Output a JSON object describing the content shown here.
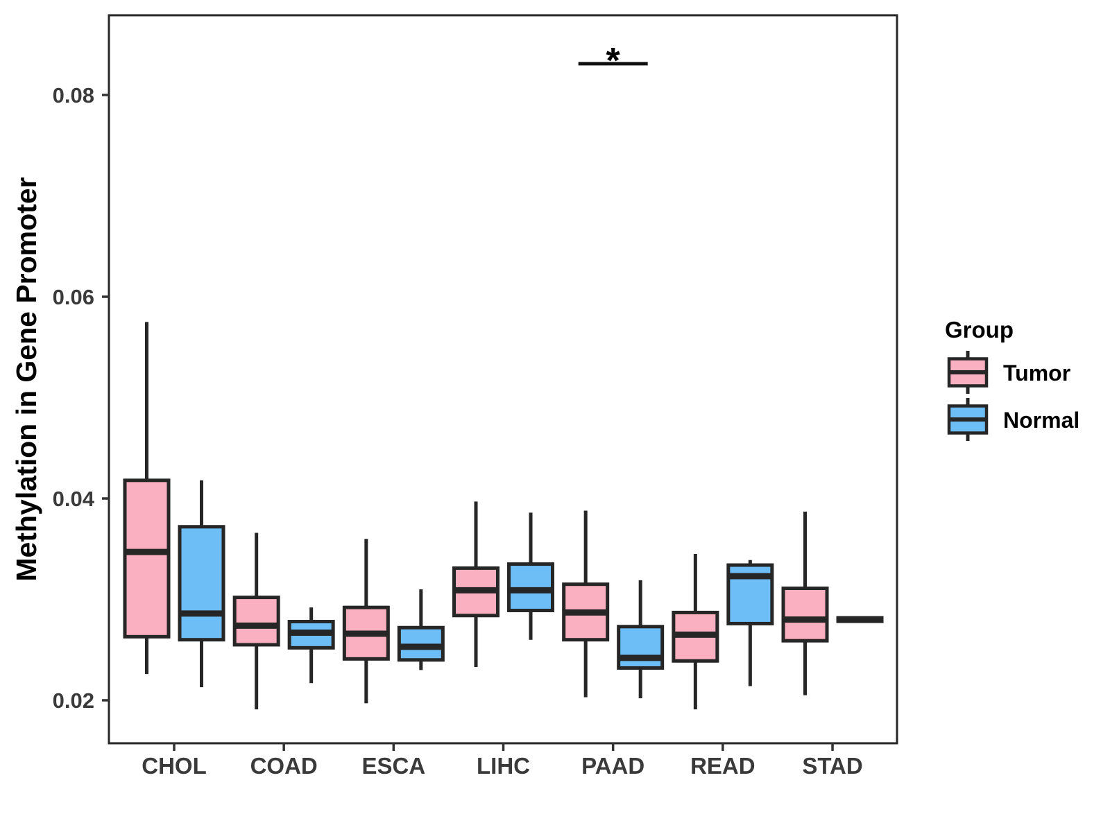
{
  "figure": {
    "y_axis_title": "Methylation in Gene Promoter"
  },
  "chart_data": {
    "type": "grouped_boxplot",
    "title": "",
    "xlabel": "",
    "ylabel": "Methylation in Gene Promoter",
    "categories": [
      "CHOL",
      "COAD",
      "ESCA",
      "LIHC",
      "PAAD",
      "READ",
      "STAD"
    ],
    "y_ticks": [
      0.02,
      0.04,
      0.06,
      0.08
    ],
    "y_tick_labels": [
      "0.02",
      "0.04",
      "0.06",
      "0.08"
    ],
    "ylim": [
      0.0157,
      0.0879
    ],
    "grid": "off",
    "panel_border_color": "#262626",
    "box_stroke_color": "#262626",
    "legend": {
      "title": "Group",
      "position": "right",
      "entries": [
        {
          "label": "Tumor",
          "color": "#FAB0C0"
        },
        {
          "label": "Normal",
          "color": "#6DBEF6"
        }
      ]
    },
    "series": [
      {
        "name": "Tumor",
        "color": "#FAB0C0",
        "boxes": [
          {
            "category": "CHOL",
            "whisker_low": 0.0226,
            "q1": 0.0263,
            "median": 0.0347,
            "q3": 0.0418,
            "whisker_high": 0.0575
          },
          {
            "category": "COAD",
            "whisker_low": 0.0191,
            "q1": 0.0255,
            "median": 0.0274,
            "q3": 0.0302,
            "whisker_high": 0.0366
          },
          {
            "category": "ESCA",
            "whisker_low": 0.0197,
            "q1": 0.0241,
            "median": 0.0266,
            "q3": 0.0292,
            "whisker_high": 0.036
          },
          {
            "category": "LIHC",
            "whisker_low": 0.0233,
            "q1": 0.0284,
            "median": 0.0309,
            "q3": 0.0331,
            "whisker_high": 0.0397
          },
          {
            "category": "PAAD",
            "whisker_low": 0.0203,
            "q1": 0.026,
            "median": 0.0287,
            "q3": 0.0315,
            "whisker_high": 0.0388
          },
          {
            "category": "READ",
            "whisker_low": 0.0191,
            "q1": 0.0239,
            "median": 0.0265,
            "q3": 0.0287,
            "whisker_high": 0.0345
          },
          {
            "category": "STAD",
            "whisker_low": 0.0205,
            "q1": 0.0259,
            "median": 0.028,
            "q3": 0.0311,
            "whisker_high": 0.0387
          }
        ]
      },
      {
        "name": "Normal",
        "color": "#6DBEF6",
        "boxes": [
          {
            "category": "CHOL",
            "whisker_low": 0.0213,
            "q1": 0.026,
            "median": 0.0286,
            "q3": 0.0372,
            "whisker_high": 0.0418
          },
          {
            "category": "COAD",
            "whisker_low": 0.0217,
            "q1": 0.0252,
            "median": 0.0267,
            "q3": 0.0278,
            "whisker_high": 0.0292
          },
          {
            "category": "ESCA",
            "whisker_low": 0.023,
            "q1": 0.024,
            "median": 0.0253,
            "q3": 0.0272,
            "whisker_high": 0.031
          },
          {
            "category": "LIHC",
            "whisker_low": 0.026,
            "q1": 0.0289,
            "median": 0.0309,
            "q3": 0.0335,
            "whisker_high": 0.0386
          },
          {
            "category": "PAAD",
            "whisker_low": 0.0202,
            "q1": 0.0232,
            "median": 0.0242,
            "q3": 0.0273,
            "whisker_high": 0.0319
          },
          {
            "category": "READ",
            "whisker_low": 0.0214,
            "q1": 0.0276,
            "median": 0.0323,
            "q3": 0.0334,
            "whisker_high": 0.0339
          },
          {
            "category": "STAD",
            "whisker_low": 0.028,
            "q1": 0.028,
            "median": 0.028,
            "q3": 0.028,
            "whisker_high": 0.028
          }
        ]
      }
    ],
    "annotation": {
      "text": "*",
      "category": "PAAD",
      "bar_y_value": 0.0831,
      "star_baseline_value": 0.0822
    }
  }
}
